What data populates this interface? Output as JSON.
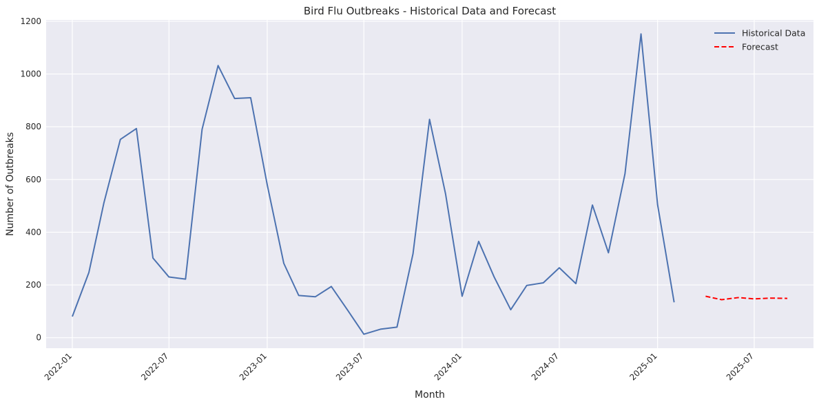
{
  "chart_data": {
    "type": "line",
    "title": "Bird Flu Outbreaks - Historical Data and Forecast",
    "xlabel": "Month",
    "ylabel": "Number of Outbreaks",
    "ylim": [
      -40,
      1205
    ],
    "xlim": [
      "2021-11-13",
      "2025-10-20"
    ],
    "y_ticks": [
      0,
      200,
      400,
      600,
      800,
      1000,
      1200
    ],
    "x_ticks": [
      "2022-01",
      "2022-07",
      "2023-01",
      "2023-07",
      "2024-01",
      "2024-07",
      "2025-01",
      "2025-07"
    ],
    "grid": true,
    "legend_position": "top-right",
    "background_color": "#eaeaf2",
    "series": [
      {
        "name": "Historical Data",
        "color": "#4c72b0",
        "style": "solid",
        "x": [
          "2022-01-01",
          "2022-02-01",
          "2022-03-01",
          "2022-04-01",
          "2022-05-01",
          "2022-06-01",
          "2022-07-01",
          "2022-08-01",
          "2022-09-01",
          "2022-10-01",
          "2022-11-01",
          "2022-12-01",
          "2023-01-01",
          "2023-02-01",
          "2023-03-01",
          "2023-04-01",
          "2023-05-01",
          "2023-06-01",
          "2023-07-01",
          "2023-08-01",
          "2023-09-01",
          "2023-10-01",
          "2023-11-01",
          "2023-12-01",
          "2024-01-01",
          "2024-02-01",
          "2024-03-01",
          "2024-04-01",
          "2024-05-01",
          "2024-06-01",
          "2024-07-01",
          "2024-08-01",
          "2024-09-01",
          "2024-10-01",
          "2024-11-01",
          "2024-12-01",
          "2025-01-01",
          "2025-02-01"
        ],
        "values": [
          80,
          247,
          510,
          752,
          793,
          302,
          230,
          222,
          790,
          1032,
          907,
          910,
          580,
          282,
          160,
          155,
          194,
          103,
          13,
          32,
          40,
          318,
          828,
          545,
          157,
          365,
          230,
          106,
          198,
          208,
          265,
          205,
          503,
          322,
          622,
          1152,
          505,
          134
        ]
      },
      {
        "name": "Forecast",
        "color": "#ff0000",
        "style": "dashed",
        "x": [
          "2025-04-01",
          "2025-05-01",
          "2025-06-01",
          "2025-07-01",
          "2025-08-01",
          "2025-09-01"
        ],
        "values": [
          157,
          144,
          152,
          147,
          150,
          149
        ]
      }
    ]
  }
}
